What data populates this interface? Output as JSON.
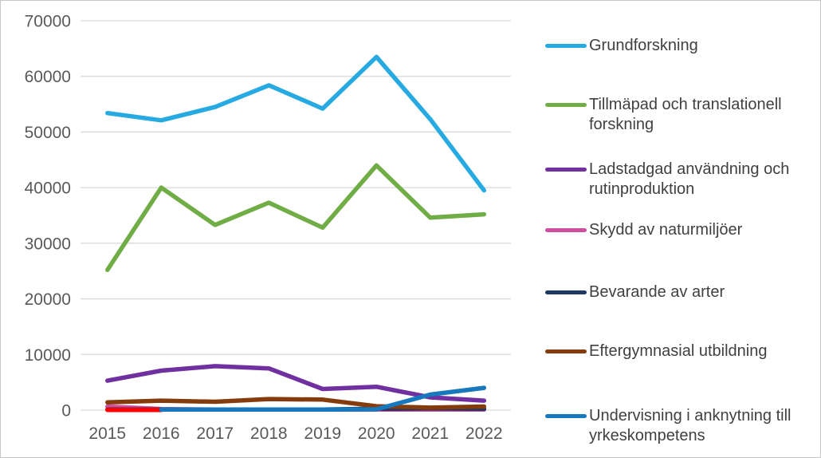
{
  "chart_data": {
    "type": "line",
    "title": "",
    "xlabel": "",
    "ylabel": "",
    "x": [
      "2015",
      "2016",
      "2017",
      "2018",
      "2019",
      "2020",
      "2021",
      "2022"
    ],
    "ylim": [
      0,
      70000
    ],
    "ytick_step": 10000,
    "yticks": [
      "0",
      "10000",
      "20000",
      "30000",
      "40000",
      "50000",
      "60000",
      "70000"
    ],
    "grid": true,
    "legend_position": "right",
    "series": [
      {
        "id": "grundforskning",
        "name": "Grundforskning",
        "color": "#27AAE1",
        "values": [
          53400,
          52100,
          54500,
          58400,
          54200,
          63500,
          52300,
          39500
        ]
      },
      {
        "id": "tillampad-forskning",
        "name": "Tillmäpad och translationell forskning",
        "color": "#70AD47",
        "values": [
          25200,
          40000,
          33300,
          37300,
          32800,
          44000,
          34600,
          35200
        ]
      },
      {
        "id": "ladstadgad-anvandning",
        "name": "Ladstadgad användning och rutinproduktion",
        "color": "#7030A0",
        "values": [
          5300,
          7100,
          7900,
          7500,
          3800,
          4200,
          2300,
          1700
        ]
      },
      {
        "id": "skydd-naturmiljoer",
        "name": "Skydd av naturmiljöer",
        "color": "#CE4F9E",
        "values": [
          650,
          200,
          100,
          100,
          100,
          100,
          100,
          100
        ]
      },
      {
        "id": "bevarande-arter",
        "name": "Bevarande av arter",
        "color": "#1F3864",
        "values": [
          100,
          100,
          100,
          100,
          100,
          250,
          300,
          250
        ]
      },
      {
        "id": "eftergymnasial-utbildning",
        "name": "Eftergymnasial utbildning",
        "color": "#843C0C",
        "values": [
          1400,
          1700,
          1500,
          2000,
          1900,
          700,
          450,
          650
        ]
      },
      {
        "id": "undervisning-yrkeskompetens",
        "name": "Undervisning i anknytning till yrkeskompetens",
        "color": "#1878BE",
        "values": [
          null,
          100,
          100,
          100,
          100,
          150,
          2800,
          4000
        ]
      },
      {
        "id": "unlabeled-red-series",
        "name": "",
        "color": "#FF0000",
        "values": [
          50,
          50,
          null,
          null,
          null,
          null,
          null,
          null
        ]
      }
    ]
  },
  "legend": {
    "items": [
      {
        "label": "Grundforskning",
        "color": "#27AAE1"
      },
      {
        "label": "Tillmäpad och translationell forskning",
        "color": "#70AD47"
      },
      {
        "label": "Ladstadgad användning och rutinproduktion",
        "color": "#7030A0"
      },
      {
        "label": "Skydd av naturmiljöer",
        "color": "#CE4F9E"
      },
      {
        "label": "Bevarande av arter",
        "color": "#1F3864"
      },
      {
        "label": "Eftergymnasial utbildning",
        "color": "#843C0C"
      },
      {
        "label": "Undervisning i anknytning till yrkeskompetens",
        "color": "#1878BE"
      }
    ]
  },
  "colors": {
    "gridline": "#D9D9D9",
    "axis_text": "#595959",
    "legend_text": "#404040",
    "background": "#FFFFFF",
    "border": "#C7C7C7"
  }
}
